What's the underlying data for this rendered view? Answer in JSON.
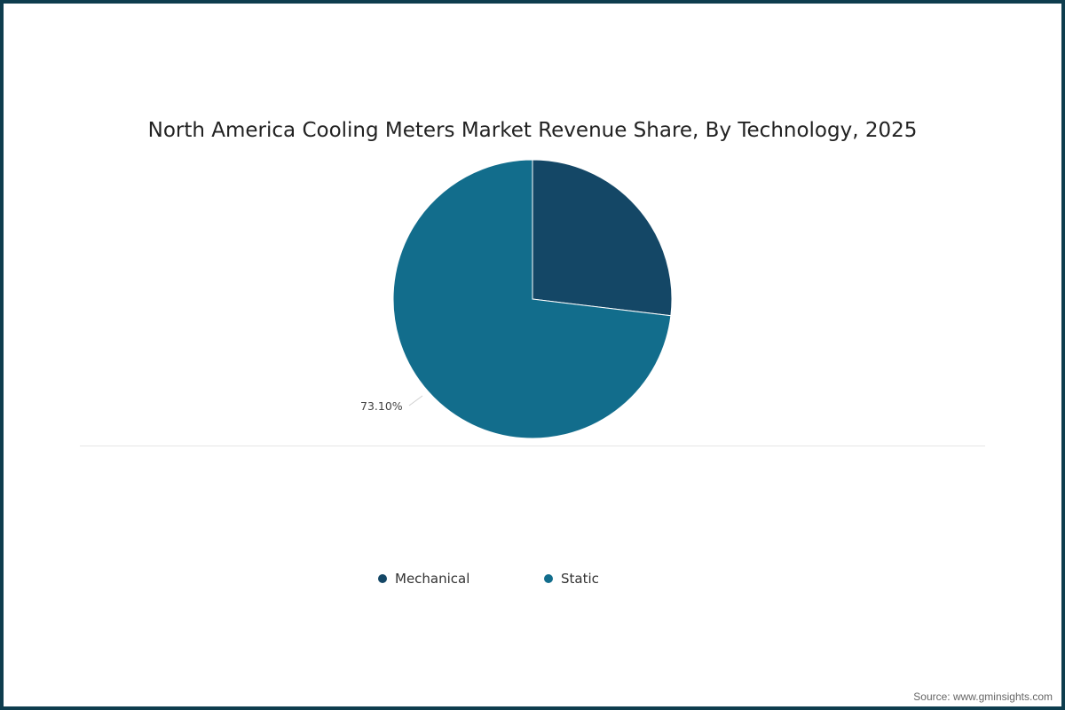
{
  "chart_data": {
    "type": "pie",
    "title": "North America Cooling Meters Market Revenue Share, By Technology, 2025",
    "categories": [
      "Mechanical",
      "Static"
    ],
    "values": [
      26.9,
      73.1
    ],
    "colors": [
      "#144766",
      "#126d8c"
    ],
    "data_labels": [
      "",
      "73.10%"
    ],
    "legend_position": "bottom"
  },
  "title": "North America Cooling Meters Market Revenue Share, By Technology, 2025",
  "labels": {
    "static": "73.10%"
  },
  "legend": [
    {
      "label": "Mechanical",
      "color": "#144766"
    },
    {
      "label": "Static",
      "color": "#126d8c"
    }
  ],
  "source": "Source: www.gminsights.com",
  "colors": {
    "border": "#0e3d4e"
  }
}
